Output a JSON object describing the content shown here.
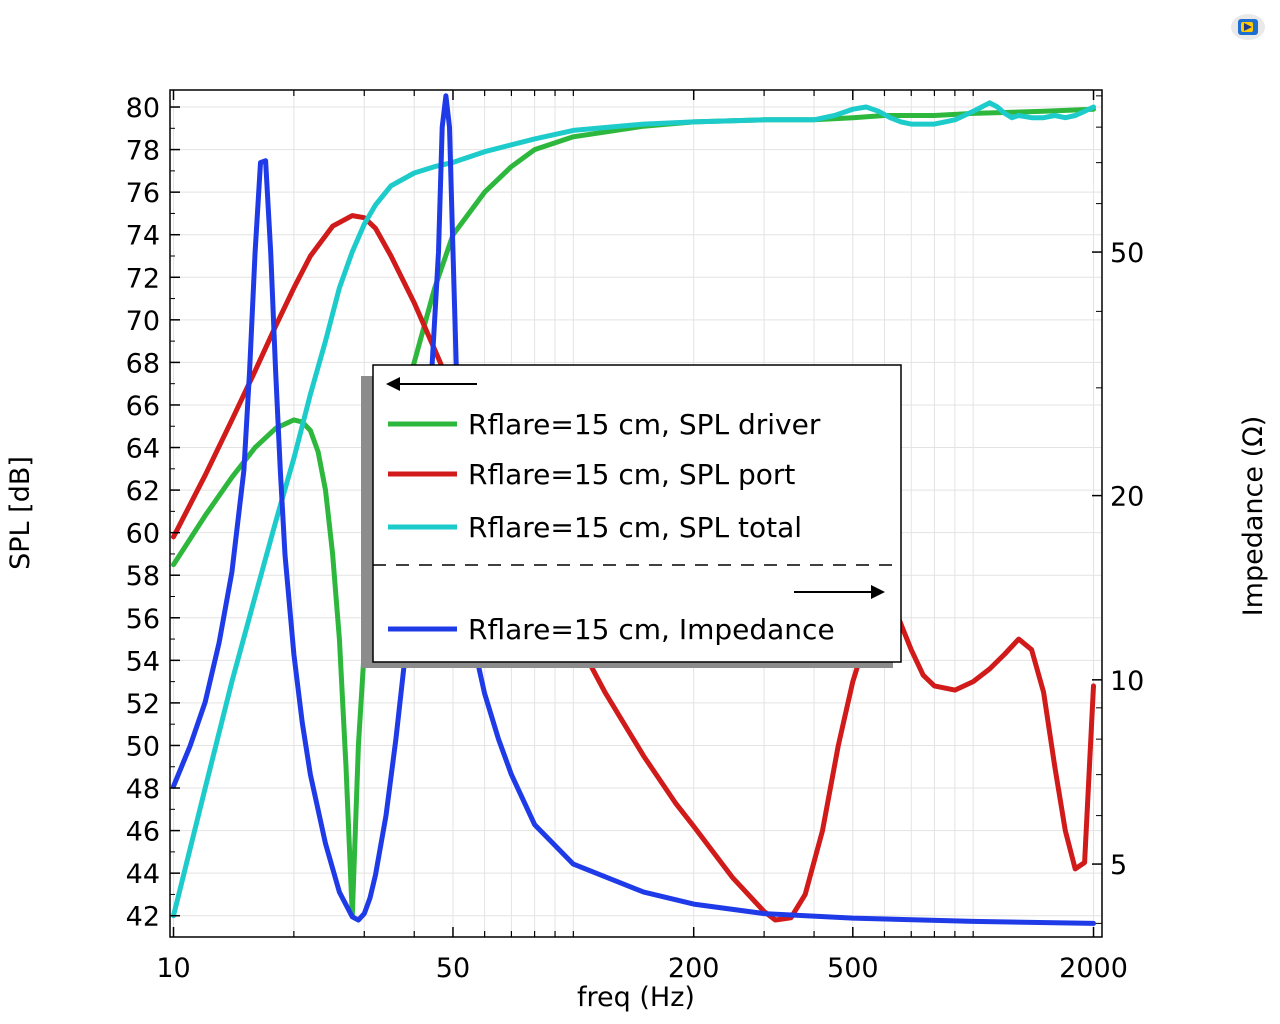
{
  "chart_data": {
    "type": "line",
    "xlabel": "freq (Hz)",
    "ylabel": "SPL [dB]",
    "y2label": "Impedance (Ω)",
    "x_scale": "log",
    "xlim": [
      9.8,
      2100
    ],
    "ylim": [
      41.0,
      80.8
    ],
    "y2_scale": "log",
    "y2lim": [
      3.8,
      92
    ],
    "x_ticks": [
      10,
      50,
      200,
      500,
      2000
    ],
    "x_minor_ticks": [
      20,
      30,
      40,
      60,
      70,
      80,
      90,
      100,
      300,
      400,
      600,
      700,
      800,
      900,
      1000
    ],
    "y_ticks": [
      42,
      44,
      46,
      48,
      50,
      52,
      54,
      56,
      58,
      60,
      62,
      64,
      66,
      68,
      70,
      72,
      74,
      76,
      78,
      80
    ],
    "y2_ticks": [
      5,
      10,
      20,
      50
    ],
    "grid": true,
    "legend_position": "center",
    "legend_groups": [
      {
        "axis": "left",
        "series": [
          "Rflare=15 cm, SPL driver",
          "Rflare=15 cm, SPL port",
          "Rflare=15 cm, SPL total"
        ]
      },
      {
        "axis": "right",
        "series": [
          "Rflare=15 cm, Impedance"
        ]
      }
    ],
    "series": [
      {
        "name": "Rflare=15 cm, SPL driver",
        "axis": "left",
        "color": "#2db83d",
        "x": [
          10,
          12,
          14,
          16,
          18,
          20,
          21,
          22,
          23,
          24,
          25,
          26,
          27,
          28,
          29,
          30,
          31,
          32,
          34,
          36,
          38,
          40,
          45,
          50,
          60,
          70,
          80,
          100,
          150,
          200,
          300,
          400,
          500,
          600,
          800,
          1000,
          1500,
          2000
        ],
        "y": [
          58.5,
          60.8,
          62.6,
          64.0,
          64.9,
          65.3,
          65.2,
          64.8,
          63.8,
          62.0,
          59.0,
          55.0,
          49.0,
          42.0,
          50.0,
          54.5,
          57.0,
          59.0,
          62.0,
          64.5,
          66.5,
          68.0,
          71.5,
          74.0,
          76.0,
          77.2,
          78.0,
          78.6,
          79.1,
          79.3,
          79.4,
          79.4,
          79.5,
          79.6,
          79.6,
          79.7,
          79.8,
          79.9
        ]
      },
      {
        "name": "Rflare=15 cm, SPL port",
        "axis": "left",
        "color": "#d11a1a",
        "x": [
          10,
          12,
          14,
          16,
          18,
          20,
          22,
          25,
          28,
          30,
          32,
          35,
          40,
          45,
          50,
          60,
          80,
          100,
          120,
          150,
          180,
          200,
          250,
          300,
          320,
          350,
          380,
          420,
          460,
          500,
          550,
          600,
          650,
          700,
          750,
          800,
          900,
          1000,
          1100,
          1200,
          1300,
          1400,
          1500,
          1600,
          1700,
          1800,
          1900,
          2000
        ],
        "y": [
          59.8,
          62.7,
          65.3,
          67.6,
          69.7,
          71.5,
          73.0,
          74.4,
          74.9,
          74.8,
          74.3,
          73.0,
          70.8,
          68.6,
          66.6,
          63.3,
          58.5,
          55.3,
          52.5,
          49.5,
          47.3,
          46.2,
          43.8,
          42.2,
          41.8,
          41.9,
          43.0,
          46.0,
          50.0,
          53.0,
          55.5,
          56.5,
          56.0,
          54.5,
          53.3,
          52.8,
          52.6,
          53.0,
          53.6,
          54.3,
          55.0,
          54.5,
          52.5,
          49.0,
          46.0,
          44.2,
          44.5,
          52.8
        ]
      },
      {
        "name": "Rflare=15 cm, SPL total",
        "axis": "left",
        "color": "#1ecbcb",
        "x": [
          10,
          12,
          14,
          16,
          18,
          20,
          22,
          24,
          26,
          28,
          30,
          32,
          35,
          40,
          45,
          50,
          60,
          80,
          100,
          150,
          200,
          300,
          400,
          450,
          500,
          540,
          580,
          620,
          660,
          700,
          750,
          800,
          850,
          900,
          950,
          1000,
          1050,
          1100,
          1150,
          1200,
          1250,
          1300,
          1400,
          1500,
          1600,
          1700,
          1800,
          1900,
          2000
        ],
        "y": [
          42.0,
          48.0,
          53.0,
          57.0,
          60.5,
          63.5,
          66.5,
          69.0,
          71.5,
          73.2,
          74.5,
          75.4,
          76.3,
          76.9,
          77.2,
          77.4,
          77.9,
          78.5,
          78.9,
          79.2,
          79.3,
          79.4,
          79.4,
          79.6,
          79.9,
          80.0,
          79.8,
          79.5,
          79.3,
          79.2,
          79.2,
          79.2,
          79.3,
          79.4,
          79.6,
          79.8,
          80.0,
          80.2,
          80.0,
          79.7,
          79.5,
          79.6,
          79.5,
          79.5,
          79.6,
          79.5,
          79.6,
          79.8,
          80.0
        ]
      },
      {
        "name": "Rflare=15 cm, Impedance",
        "axis": "right",
        "color": "#1f3be8",
        "x": [
          10,
          11,
          12,
          13,
          14,
          15,
          15.5,
          16,
          16.5,
          17,
          17.5,
          18,
          18.5,
          19,
          20,
          21,
          22,
          24,
          26,
          28,
          29,
          30,
          31,
          32,
          34,
          36,
          38,
          40,
          42,
          44,
          46,
          47,
          48,
          49,
          50,
          51,
          52,
          53,
          54,
          56,
          58,
          60,
          65,
          70,
          80,
          100,
          150,
          200,
          300,
          500,
          1000,
          2000
        ],
        "y": [
          6.7,
          7.8,
          9.2,
          11.5,
          15.0,
          22.0,
          32.0,
          50.0,
          70.0,
          70.5,
          50.0,
          32.0,
          22.0,
          16.0,
          11.0,
          8.5,
          7.0,
          5.4,
          4.5,
          4.1,
          4.05,
          4.15,
          4.4,
          4.8,
          6.0,
          8.0,
          11.0,
          15.0,
          21.0,
          30.0,
          50.0,
          80.0,
          90.0,
          80.0,
          50.0,
          32.0,
          24.0,
          19.0,
          16.0,
          12.5,
          10.5,
          9.5,
          8.0,
          7.0,
          5.8,
          5.0,
          4.5,
          4.3,
          4.15,
          4.08,
          4.03,
          4.0
        ]
      }
    ]
  }
}
